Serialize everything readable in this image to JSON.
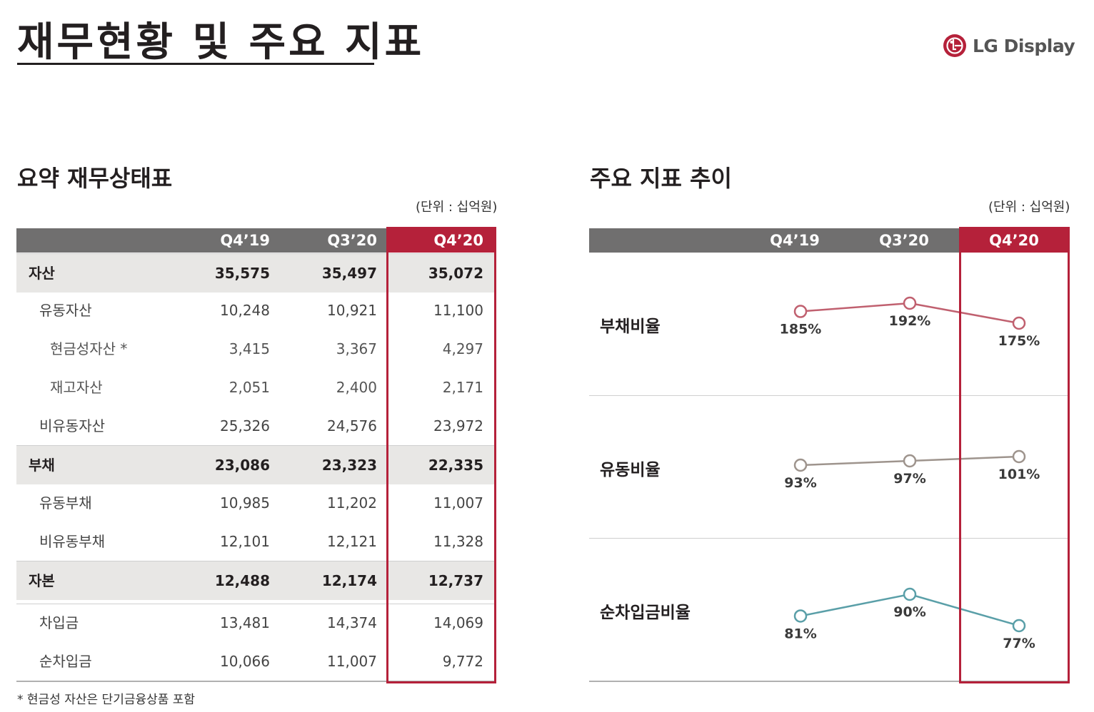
{
  "header": {
    "title": "재무현황 및 주요 지표",
    "logo_text": "LG Display",
    "brand_color": "#b5213a"
  },
  "balance_sheet": {
    "title": "요약 재무상태표",
    "unit": "(단위 : 십억원)",
    "columns": [
      "Q4’19",
      "Q3’20",
      "Q4’20"
    ],
    "highlight_column": "Q4’20",
    "rows": [
      {
        "label": "자산",
        "level": "major",
        "values": [
          "35,575",
          "35,497",
          "35,072"
        ]
      },
      {
        "label": "유동자산",
        "level": "minor",
        "values": [
          "10,248",
          "10,921",
          "11,100"
        ]
      },
      {
        "label": "현금성자산 *",
        "level": "level3",
        "values": [
          "3,415",
          "3,367",
          "4,297"
        ]
      },
      {
        "label": "재고자산",
        "level": "level3",
        "values": [
          "2,051",
          "2,400",
          "2,171"
        ]
      },
      {
        "label": "비유동자산",
        "level": "minor",
        "values": [
          "25,326",
          "24,576",
          "23,972"
        ]
      },
      {
        "label": "부채",
        "level": "major",
        "values": [
          "23,086",
          "23,323",
          "22,335"
        ]
      },
      {
        "label": "유동부채",
        "level": "minor",
        "values": [
          "10,985",
          "11,202",
          "11,007"
        ]
      },
      {
        "label": "비유동부채",
        "level": "minor",
        "values": [
          "12,101",
          "12,121",
          "11,328"
        ]
      },
      {
        "label": "자본",
        "level": "major",
        "values": [
          "12,488",
          "12,174",
          "12,737"
        ]
      },
      {
        "label": "차입금",
        "level": "minor",
        "values": [
          "13,481",
          "14,374",
          "14,069"
        ]
      },
      {
        "label": "순차입금",
        "level": "minor",
        "values": [
          "10,066",
          "11,007",
          "9,772"
        ]
      }
    ],
    "footnote": "* 현금성 자산은 단기금융상품 포함"
  },
  "indicators": {
    "title": "주요 지표 추이",
    "unit": "(단위 : 십억원)",
    "columns": [
      "Q4’19",
      "Q3’20",
      "Q4’20"
    ],
    "highlight_column": "Q4’20"
  },
  "chart_data": {
    "type": "line",
    "title": "주요 지표 추이",
    "categories": [
      "Q4’19",
      "Q3’20",
      "Q4’20"
    ],
    "series": [
      {
        "name": "부채비율",
        "values": [
          185,
          192,
          175
        ],
        "labels": [
          "185%",
          "192%",
          "175%"
        ],
        "color": "#c0606f"
      },
      {
        "name": "유동비율",
        "values": [
          93,
          97,
          101
        ],
        "labels": [
          "93%",
          "97%",
          "101%"
        ],
        "color": "#9e948d"
      },
      {
        "name": "순차입금비율",
        "values": [
          81,
          90,
          77
        ],
        "labels": [
          "81%",
          "90%",
          "77%"
        ],
        "color": "#5a9fa8"
      }
    ]
  }
}
